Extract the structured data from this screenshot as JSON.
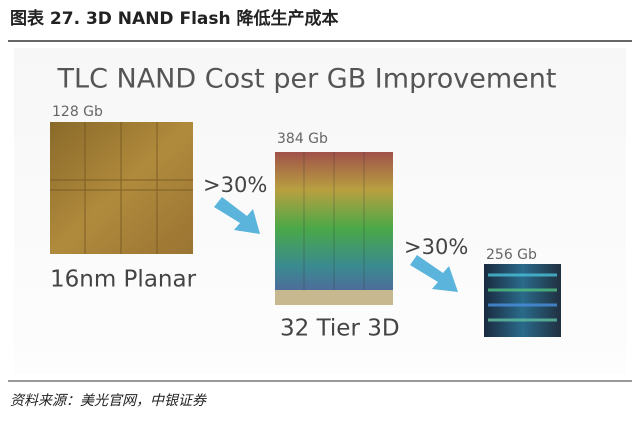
{
  "header": {
    "title": "图表 27. 3D NAND Flash 降低生产成本"
  },
  "figure": {
    "title": "TLC NAND Cost per GB Improvement",
    "dies": [
      {
        "capacity": "128 Gb",
        "label": "16nm Planar"
      },
      {
        "capacity": "384 Gb",
        "label": "32 Tier 3D"
      },
      {
        "capacity": "256 Gb"
      }
    ],
    "arrows": [
      {
        "label": ">30%"
      },
      {
        "label": ">30%"
      }
    ]
  },
  "source": "资料来源：美光官网，中银证券"
}
